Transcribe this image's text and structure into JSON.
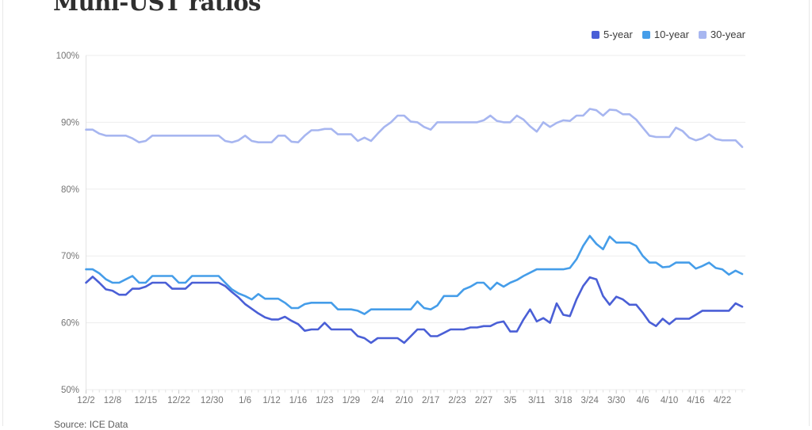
{
  "page": {
    "title": "Muni-UST ratios",
    "source": "Source: ICE Data"
  },
  "legend": {
    "position": "top-right",
    "items": [
      {
        "label": "5-year",
        "color": "#4a5fd6"
      },
      {
        "label": "10-year",
        "color": "#459de9"
      },
      {
        "label": "30-year",
        "color": "#a7b6f0"
      }
    ]
  },
  "chart_data": {
    "type": "line",
    "title": "Muni-UST ratios",
    "xlabel": "",
    "ylabel": "",
    "ylim": [
      50,
      100
    ],
    "grid": "horizontal",
    "legend_position": "top-right",
    "n_points": 100,
    "yticks": [
      {
        "label": "100%",
        "value": 100
      },
      {
        "label": "90%",
        "value": 90
      },
      {
        "label": "80%",
        "value": 80
      },
      {
        "label": "70%",
        "value": 70
      },
      {
        "label": "60%",
        "value": 60
      },
      {
        "label": "50%",
        "value": 50
      }
    ],
    "x_labels": [
      {
        "label": "12/2",
        "index": 0
      },
      {
        "label": "12/8",
        "index": 4
      },
      {
        "label": "12/15",
        "index": 9
      },
      {
        "label": "12/22",
        "index": 14
      },
      {
        "label": "12/30",
        "index": 19
      },
      {
        "label": "1/6",
        "index": 24
      },
      {
        "label": "1/12",
        "index": 28
      },
      {
        "label": "1/16",
        "index": 32
      },
      {
        "label": "1/23",
        "index": 36
      },
      {
        "label": "1/29",
        "index": 40
      },
      {
        "label": "2/4",
        "index": 44
      },
      {
        "label": "2/10",
        "index": 48
      },
      {
        "label": "2/17",
        "index": 52
      },
      {
        "label": "2/23",
        "index": 56
      },
      {
        "label": "2/27",
        "index": 60
      },
      {
        "label": "3/5",
        "index": 64
      },
      {
        "label": "3/11",
        "index": 68
      },
      {
        "label": "3/18",
        "index": 72
      },
      {
        "label": "3/24",
        "index": 76
      },
      {
        "label": "3/30",
        "index": 80
      },
      {
        "label": "4/6",
        "index": 84
      },
      {
        "label": "4/10",
        "index": 88
      },
      {
        "label": "4/16",
        "index": 92
      },
      {
        "label": "4/22",
        "index": 96
      }
    ],
    "series": [
      {
        "name": "5-year",
        "color": "#4a5fd6",
        "values": [
          66,
          66.9,
          66,
          65,
          64.8,
          64.2,
          64.2,
          65.1,
          65.1,
          65.4,
          66,
          66,
          66,
          65.1,
          65.1,
          65.1,
          66,
          66,
          66,
          66,
          66,
          65.5,
          64.6,
          63.8,
          62.8,
          62.1,
          61.4,
          60.8,
          60.5,
          60.5,
          60.9,
          60.3,
          59.8,
          58.8,
          59,
          59,
          60,
          59,
          59,
          59,
          59,
          58,
          57.7,
          57,
          57.7,
          57.7,
          57.7,
          57.7,
          57,
          58,
          59,
          59,
          58,
          58,
          58.5,
          59,
          59,
          59,
          59.3,
          59.3,
          59.5,
          59.5,
          60,
          60.2,
          58.7,
          58.7,
          60.5,
          62,
          60.2,
          60.7,
          60,
          62.9,
          61.2,
          61,
          63.5,
          65.5,
          66.8,
          66.5,
          64,
          62.7,
          63.9,
          63.5,
          62.7,
          62.7,
          61.5,
          60.1,
          59.5,
          60.6,
          59.8,
          60.6,
          60.6,
          60.6,
          61.2,
          61.8,
          61.8,
          61.8,
          61.8,
          61.8,
          62.9,
          62.4
        ]
      },
      {
        "name": "10-year",
        "color": "#459de9",
        "values": [
          68,
          68,
          67.4,
          66.5,
          66,
          66,
          66.5,
          67,
          66,
          66,
          67,
          67,
          67,
          67,
          66,
          66,
          67,
          67,
          67,
          67,
          67,
          66,
          65,
          64.4,
          64,
          63.5,
          64.3,
          63.6,
          63.6,
          63.6,
          63,
          62.2,
          62.2,
          62.8,
          63,
          63,
          63,
          63,
          62,
          62,
          62,
          61.8,
          61.3,
          62,
          62,
          62,
          62,
          62,
          62,
          62,
          63.2,
          62.2,
          62,
          62.6,
          64,
          64,
          64,
          65,
          65.4,
          66,
          66,
          65,
          66,
          65.4,
          66,
          66.4,
          67,
          67.5,
          68,
          68,
          68,
          68,
          68,
          68.2,
          69.5,
          71.5,
          73,
          71.8,
          71,
          72.9,
          72,
          72,
          72,
          71.5,
          70,
          69,
          69,
          68.3,
          68.4,
          69,
          69,
          69,
          68.1,
          68.5,
          69,
          68.2,
          68,
          67.2,
          67.8,
          67.3
        ]
      },
      {
        "name": "30-year",
        "color": "#a7b6f0",
        "values": [
          88.9,
          88.9,
          88.3,
          88,
          88,
          88,
          88,
          87.6,
          87,
          87.2,
          88,
          88,
          88,
          88,
          88,
          88,
          88,
          88,
          88,
          88,
          88,
          87.2,
          87,
          87.3,
          88,
          87.2,
          87,
          87,
          87,
          88,
          88,
          87.1,
          87,
          88,
          88.8,
          88.8,
          89,
          89,
          88.2,
          88.2,
          88.2,
          87.2,
          87.7,
          87.2,
          88.3,
          89.3,
          90,
          91,
          91,
          90.1,
          90,
          89.3,
          88.9,
          90,
          90,
          90,
          90,
          90,
          90,
          90,
          90.3,
          91,
          90.2,
          90,
          90,
          91,
          90.4,
          89.4,
          88.6,
          90,
          89.3,
          89.9,
          90.3,
          90.2,
          91,
          91,
          92,
          91.8,
          91,
          91.9,
          91.8,
          91.2,
          91.2,
          90.4,
          89.2,
          88,
          87.8,
          87.8,
          87.8,
          89.2,
          88.7,
          87.7,
          87.3,
          87.6,
          88.2,
          87.5,
          87.3,
          87.3,
          87.3,
          86.3
        ]
      }
    ]
  }
}
